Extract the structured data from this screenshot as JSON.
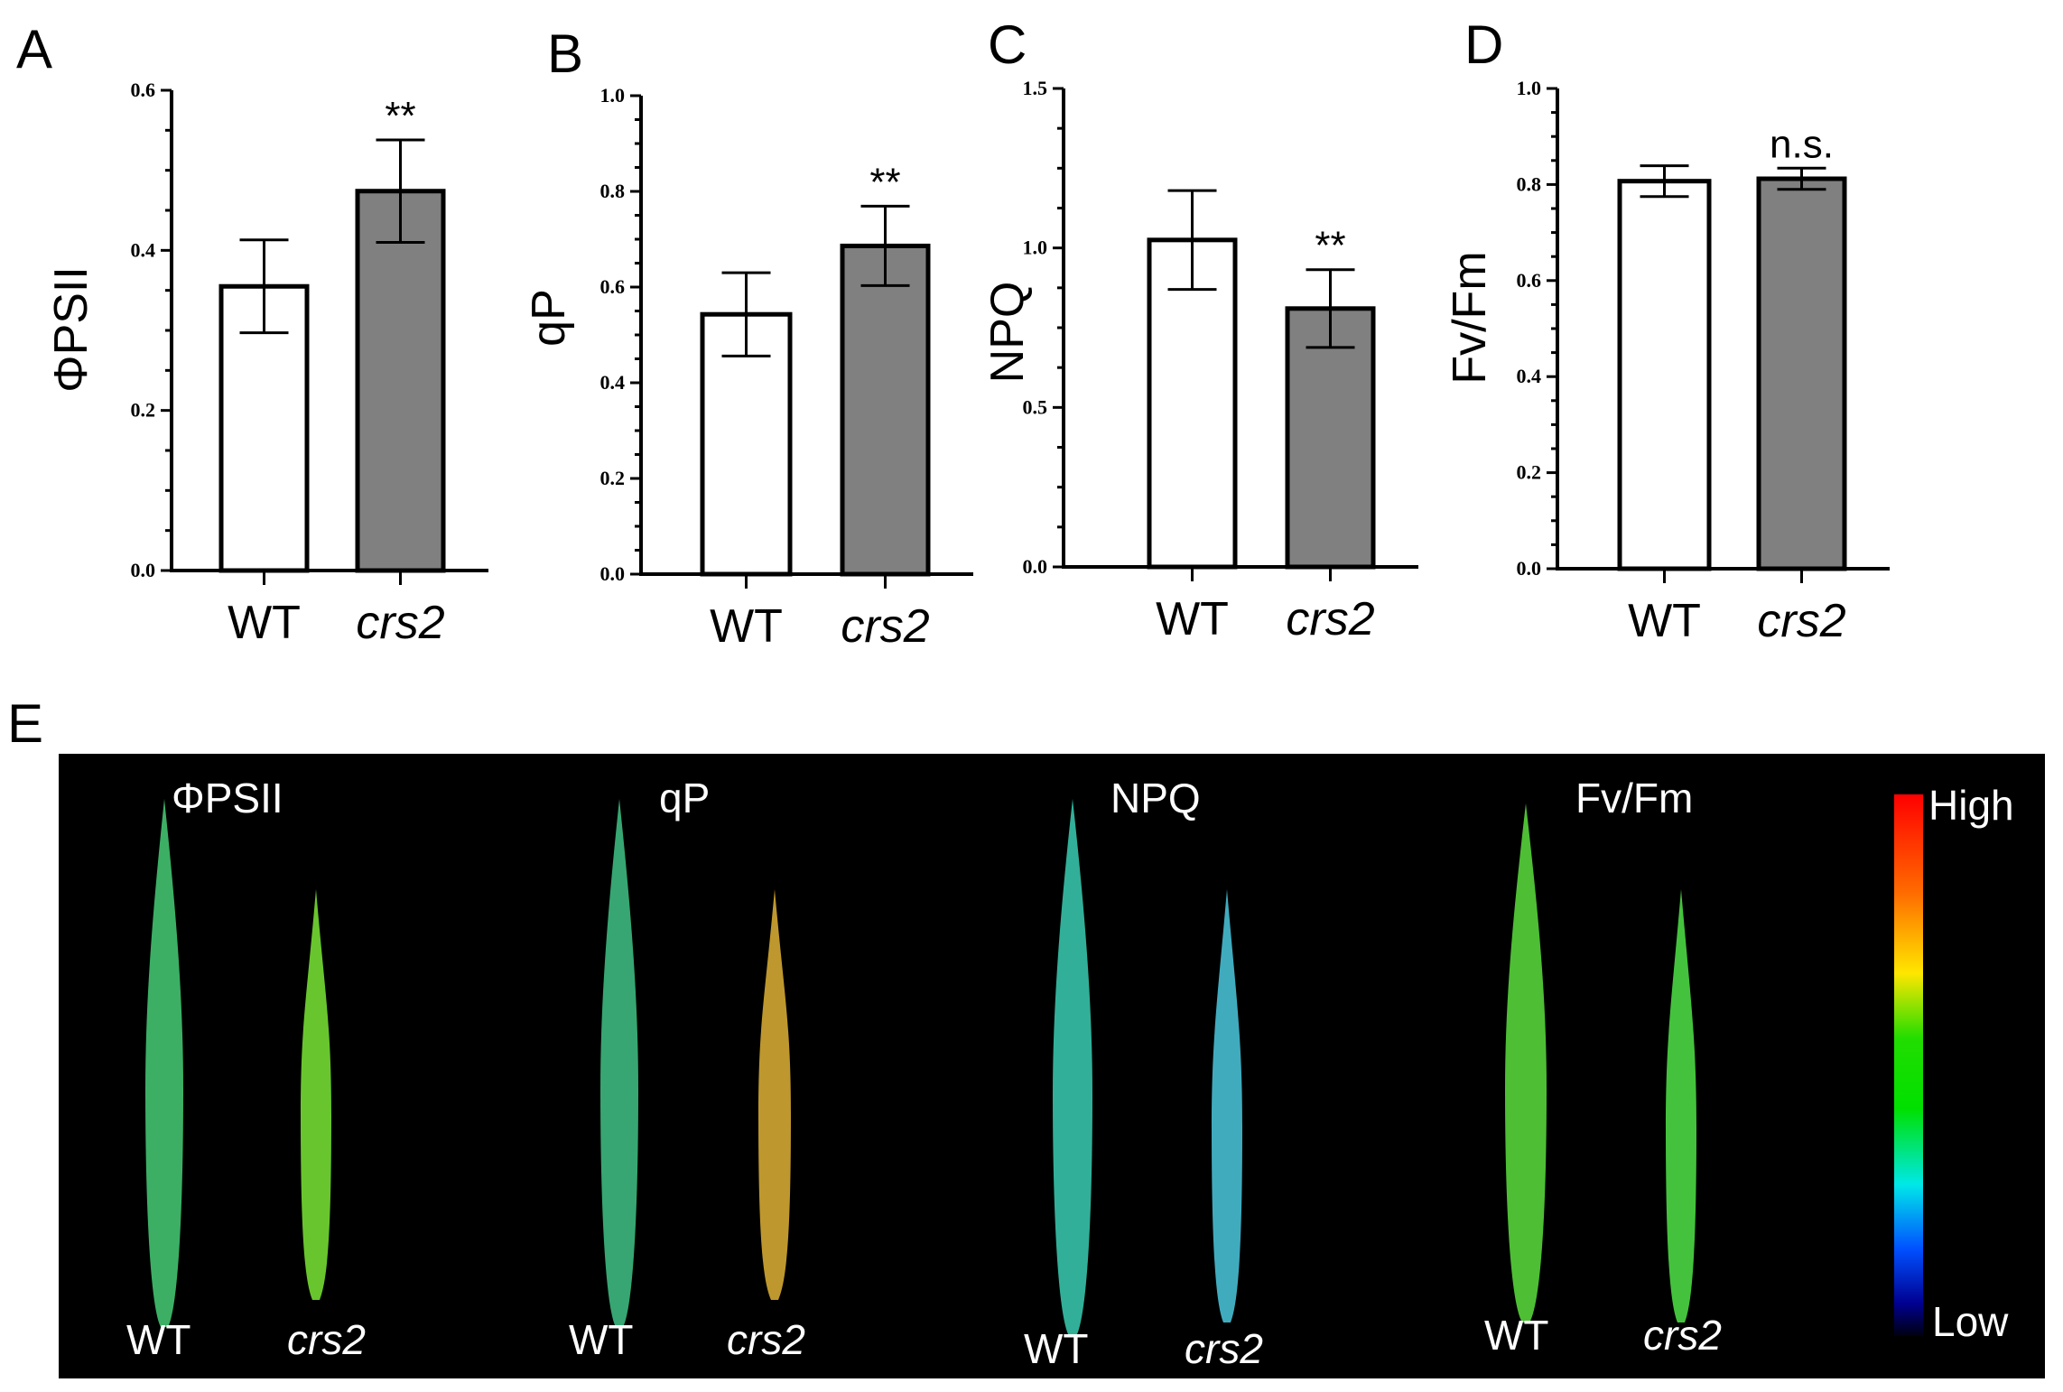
{
  "figure": {
    "panel_E_letter": "E"
  },
  "chart_data": [
    {
      "type": "bar",
      "panel": "A",
      "title": "",
      "ylabel": "ΦPSII",
      "xlabel": "",
      "categories": [
        "WT",
        "crs2"
      ],
      "italic_categories": [
        false,
        true
      ],
      "values": [
        0.355,
        0.474
      ],
      "errors": [
        0.058,
        0.064
      ],
      "colors": [
        "#ffffff",
        "#808080"
      ],
      "significance": [
        "",
        "**"
      ],
      "ylim": [
        0,
        0.6
      ],
      "yticks": [
        0.0,
        0.2,
        0.4,
        0.6
      ],
      "ytick_labels": [
        "0.0",
        "0.2",
        "0.4",
        "0.6"
      ]
    },
    {
      "type": "bar",
      "panel": "B",
      "title": "",
      "ylabel": "qP",
      "xlabel": "",
      "categories": [
        "WT",
        "crs2"
      ],
      "italic_categories": [
        false,
        true
      ],
      "values": [
        0.543,
        0.686
      ],
      "errors": [
        0.087,
        0.083
      ],
      "colors": [
        "#ffffff",
        "#808080"
      ],
      "significance": [
        "",
        "**"
      ],
      "ylim": [
        0,
        1.0
      ],
      "yticks": [
        0.0,
        0.2,
        0.4,
        0.6,
        0.8,
        1.0
      ],
      "ytick_labels": [
        "0.0",
        "0.2",
        "0.4",
        "0.6",
        "0.8",
        "1.0"
      ]
    },
    {
      "type": "bar",
      "panel": "C",
      "title": "",
      "ylabel": "NPQ",
      "xlabel": "",
      "categories": [
        "WT",
        "crs2"
      ],
      "italic_categories": [
        false,
        true
      ],
      "values": [
        1.025,
        0.81
      ],
      "errors": [
        0.155,
        0.122
      ],
      "colors": [
        "#ffffff",
        "#808080"
      ],
      "significance": [
        "",
        "**"
      ],
      "ylim": [
        0,
        1.5
      ],
      "yticks": [
        0.0,
        0.5,
        1.0,
        1.5
      ],
      "ytick_labels": [
        "0.0",
        "0.5",
        "1.0",
        "1.5"
      ]
    },
    {
      "type": "bar",
      "panel": "D",
      "title": "",
      "ylabel": "Fv/Fm",
      "xlabel": "",
      "categories": [
        "WT",
        "crs2"
      ],
      "italic_categories": [
        false,
        true
      ],
      "values": [
        0.807,
        0.812
      ],
      "errors": [
        0.032,
        0.022
      ],
      "colors": [
        "#ffffff",
        "#808080"
      ],
      "significance": [
        "",
        "n.s."
      ],
      "ylim": [
        0,
        1.0
      ],
      "yticks": [
        0.0,
        0.2,
        0.4,
        0.6,
        0.8,
        1.0
      ],
      "ytick_labels": [
        "0.0",
        "0.2",
        "0.4",
        "0.6",
        "0.8",
        "1.0"
      ]
    }
  ],
  "imaging": {
    "panels": [
      {
        "title": "ΦPSII",
        "wt_label": "WT",
        "mut_label": "crs2",
        "wt_color": "#3fb86a",
        "mut_color": "#6fd030"
      },
      {
        "title": "qP",
        "wt_label": "WT",
        "mut_label": "crs2",
        "wt_color": "#3aaf78",
        "mut_color": "#c8a030"
      },
      {
        "title": "NPQ",
        "wt_label": "WT",
        "mut_label": "crs2",
        "wt_color": "#35b8a0",
        "mut_color": "#45b4c8"
      },
      {
        "title": "Fv/Fm",
        "wt_label": "WT",
        "mut_label": "crs2",
        "wt_color": "#52c838",
        "mut_color": "#48cc40"
      }
    ],
    "scale_high": "High",
    "scale_low": "Low"
  }
}
